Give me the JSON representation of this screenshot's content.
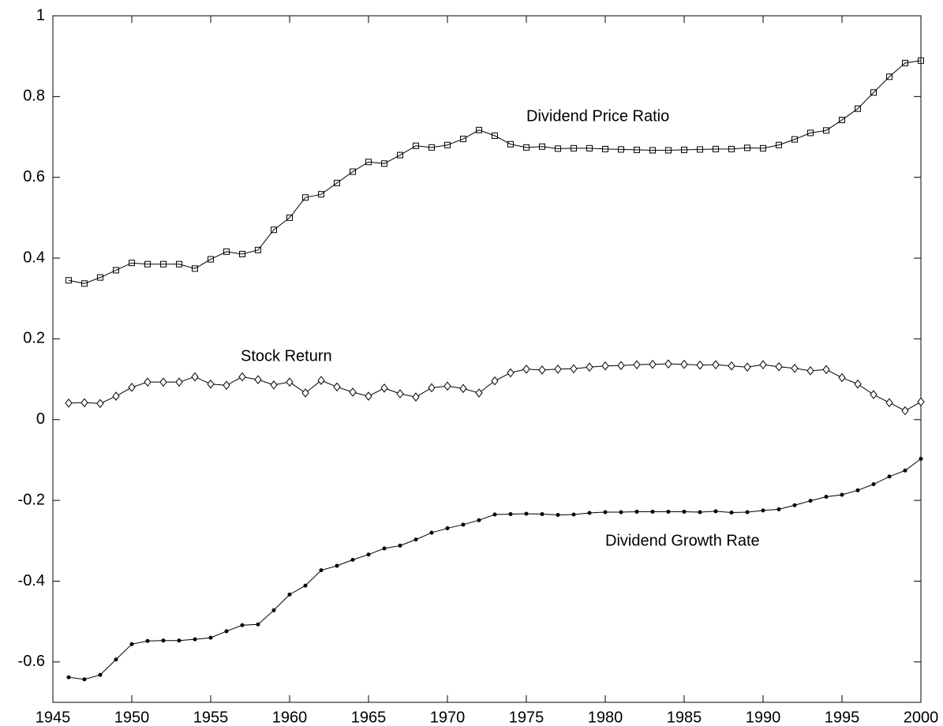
{
  "chart_data": {
    "type": "line",
    "x": [
      1946,
      1947,
      1948,
      1949,
      1950,
      1951,
      1952,
      1953,
      1954,
      1955,
      1956,
      1957,
      1958,
      1959,
      1960,
      1961,
      1962,
      1963,
      1964,
      1965,
      1966,
      1967,
      1968,
      1969,
      1970,
      1971,
      1972,
      1973,
      1974,
      1975,
      1976,
      1977,
      1978,
      1979,
      1980,
      1981,
      1982,
      1983,
      1984,
      1985,
      1986,
      1987,
      1988,
      1989,
      1990,
      1991,
      1992,
      1993,
      1994,
      1995,
      1996,
      1997,
      1998,
      1999,
      2000
    ],
    "series": [
      {
        "name": "Dividend Price Ratio",
        "color": "#000000",
        "marker": "square",
        "values": [
          0.345,
          0.337,
          0.352,
          0.37,
          0.388,
          0.385,
          0.385,
          0.385,
          0.374,
          0.397,
          0.416,
          0.41,
          0.42,
          0.47,
          0.5,
          0.55,
          0.558,
          0.586,
          0.614,
          0.638,
          0.634,
          0.655,
          0.678,
          0.674,
          0.68,
          0.695,
          0.717,
          0.703,
          0.682,
          0.674,
          0.676,
          0.671,
          0.672,
          0.672,
          0.67,
          0.669,
          0.668,
          0.667,
          0.667,
          0.668,
          0.669,
          0.67,
          0.67,
          0.673,
          0.672,
          0.68,
          0.694,
          0.71,
          0.716,
          0.742,
          0.77,
          0.81,
          0.849,
          0.883,
          0.889
        ]
      },
      {
        "name": "Stock Return",
        "color": "#000000",
        "marker": "diamond",
        "values": [
          0.041,
          0.042,
          0.04,
          0.058,
          0.08,
          0.093,
          0.093,
          0.093,
          0.106,
          0.088,
          0.085,
          0.106,
          0.099,
          0.086,
          0.093,
          0.066,
          0.097,
          0.081,
          0.068,
          0.058,
          0.078,
          0.064,
          0.056,
          0.079,
          0.083,
          0.077,
          0.066,
          0.096,
          0.116,
          0.125,
          0.123,
          0.125,
          0.126,
          0.13,
          0.133,
          0.134,
          0.136,
          0.137,
          0.138,
          0.137,
          0.135,
          0.136,
          0.133,
          0.13,
          0.136,
          0.131,
          0.127,
          0.121,
          0.124,
          0.104,
          0.088,
          0.062,
          0.042,
          0.022,
          0.044
        ]
      },
      {
        "name": "Dividend Growth Rate",
        "color": "#000000",
        "marker": "dot",
        "values": [
          -0.638,
          -0.643,
          -0.632,
          -0.594,
          -0.556,
          -0.548,
          -0.547,
          -0.547,
          -0.544,
          -0.54,
          -0.524,
          -0.509,
          -0.507,
          -0.472,
          -0.433,
          -0.411,
          -0.373,
          -0.362,
          -0.347,
          -0.334,
          -0.319,
          -0.312,
          -0.297,
          -0.28,
          -0.269,
          -0.26,
          -0.249,
          -0.235,
          -0.234,
          -0.233,
          -0.234,
          -0.236,
          -0.235,
          -0.231,
          -0.229,
          -0.229,
          -0.228,
          -0.228,
          -0.228,
          -0.228,
          -0.229,
          -0.227,
          -0.23,
          -0.229,
          -0.225,
          -0.222,
          -0.212,
          -0.201,
          -0.191,
          -0.186,
          -0.175,
          -0.16,
          -0.141,
          -0.126,
          -0.097
        ]
      }
    ],
    "xlim": [
      1945,
      2000
    ],
    "xticks": [
      1945,
      1950,
      1955,
      1960,
      1965,
      1970,
      1975,
      1980,
      1985,
      1990,
      1995,
      2000
    ],
    "ylim": [
      -0.7,
      1
    ],
    "yticks": [
      1,
      0.8,
      0.6,
      0.4,
      0.2,
      0,
      -0.2,
      -0.4,
      -0.6
    ],
    "grid": false
  }
}
